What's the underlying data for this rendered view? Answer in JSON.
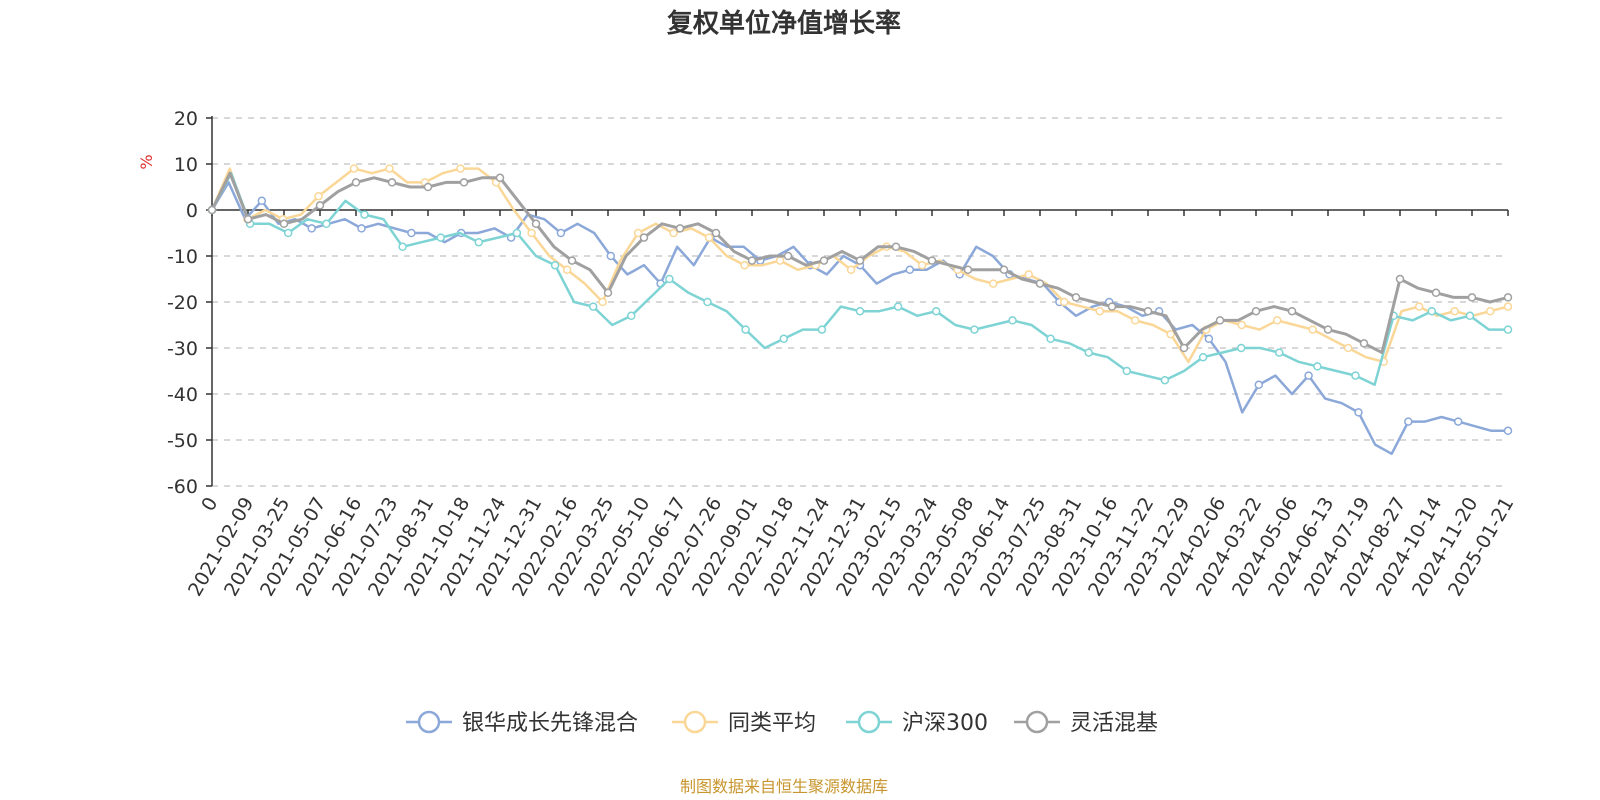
{
  "chart_data": {
    "type": "line",
    "title": "复权单位净值增长率",
    "ylabel": "%",
    "ylim": [
      -60,
      20
    ],
    "yticks": [
      20,
      10,
      0,
      -10,
      -20,
      -30,
      -40,
      -50,
      -60
    ],
    "x_start_label": "0",
    "x_tick_labels": [
      "2021-02-09",
      "2021-03-25",
      "2021-05-07",
      "2021-06-16",
      "2021-07-23",
      "2021-08-31",
      "2021-10-18",
      "2021-11-24",
      "2021-12-31",
      "2022-02-16",
      "2022-03-25",
      "2022-05-10",
      "2022-06-17",
      "2022-07-26",
      "2022-09-01",
      "2022-10-18",
      "2022-11-24",
      "2022-12-31",
      "2023-02-15",
      "2023-03-24",
      "2023-05-08",
      "2023-06-14",
      "2023-07-25",
      "2023-08-31",
      "2023-10-16",
      "2023-11-22",
      "2023-12-29",
      "2024-02-06",
      "2024-03-22",
      "2024-05-06",
      "2024-06-13",
      "2024-07-19",
      "2024-08-27",
      "2024-10-14",
      "2024-11-20",
      "2025-01-21"
    ],
    "grid": true,
    "legend_position": "bottom",
    "series": [
      {
        "name": "银华成长先锋混合",
        "color": "#8ba8d9",
        "values": [
          0,
          6,
          -2,
          2,
          -3,
          -2,
          -4,
          -3,
          -2,
          -4,
          -3,
          -4,
          -5,
          -5,
          -7,
          -5,
          -5,
          -4,
          -6,
          -1,
          -2,
          -5,
          -3,
          -5,
          -10,
          -14,
          -12,
          -16,
          -8,
          -12,
          -6,
          -8,
          -8,
          -11,
          -10,
          -8,
          -12,
          -14,
          -10,
          -12,
          -16,
          -14,
          -13,
          -13,
          -11,
          -14,
          -8,
          -10,
          -14,
          -15,
          -16,
          -20,
          -23,
          -21,
          -20,
          -21,
          -23,
          -22,
          -26,
          -25,
          -28,
          -33,
          -44,
          -38,
          -36,
          -40,
          -36,
          -41,
          -42,
          -44,
          -51,
          -53,
          -46,
          -46,
          -45,
          -46,
          -47,
          -48,
          -48
        ]
      },
      {
        "name": "同类平均",
        "color": "#fad797",
        "values": [
          0,
          9,
          -2,
          0,
          -2,
          -1,
          3,
          6,
          9,
          8,
          9,
          6,
          6,
          8,
          9,
          9,
          6,
          0,
          -5,
          -10,
          -13,
          -16,
          -20,
          -11,
          -5,
          -3,
          -5,
          -4,
          -6,
          -10,
          -12,
          -12,
          -11,
          -13,
          -12,
          -10,
          -13,
          -10,
          -8,
          -9,
          -12,
          -11,
          -13,
          -15,
          -16,
          -15,
          -14,
          -16,
          -20,
          -21,
          -22,
          -22,
          -24,
          -25,
          -27,
          -33,
          -26,
          -24,
          -25,
          -26,
          -24,
          -25,
          -26,
          -28,
          -30,
          -32,
          -33,
          -22,
          -21,
          -23,
          -22,
          -23,
          -22,
          -21
        ]
      },
      {
        "name": "沪深300",
        "color": "#7ed3d4",
        "values": [
          0,
          8,
          -3,
          -3,
          -5,
          -2,
          -3,
          2,
          -1,
          -2,
          -8,
          -7,
          -6,
          -5,
          -7,
          -6,
          -5,
          -10,
          -12,
          -20,
          -21,
          -25,
          -23,
          -19,
          -15,
          -18,
          -20,
          -22,
          -26,
          -30,
          -28,
          -26,
          -26,
          -21,
          -22,
          -22,
          -21,
          -23,
          -22,
          -25,
          -26,
          -25,
          -24,
          -25,
          -28,
          -29,
          -31,
          -32,
          -35,
          -36,
          -37,
          -35,
          -32,
          -31,
          -30,
          -30,
          -31,
          -33,
          -34,
          -35,
          -36,
          -38,
          -23,
          -24,
          -22,
          -24,
          -23,
          -26,
          -26
        ]
      },
      {
        "name": "灵活混基",
        "color": "#a0a0a0",
        "values": [
          0,
          8,
          -2,
          -1,
          -3,
          -2,
          1,
          4,
          6,
          7,
          6,
          5,
          5,
          6,
          6,
          7,
          7,
          2,
          -3,
          -8,
          -11,
          -13,
          -18,
          -10,
          -6,
          -3,
          -4,
          -3,
          -5,
          -9,
          -11,
          -10,
          -10,
          -12,
          -11,
          -9,
          -11,
          -8,
          -8,
          -9,
          -11,
          -12,
          -13,
          -13,
          -13,
          -15,
          -16,
          -17,
          -19,
          -20,
          -21,
          -21,
          -22,
          -23,
          -30,
          -26,
          -24,
          -24,
          -22,
          -21,
          -22,
          -24,
          -26,
          -27,
          -29,
          -31,
          -15,
          -17,
          -18,
          -19,
          -19,
          -20,
          -19
        ]
      }
    ]
  },
  "source": "制图数据来自恒生聚源数据库"
}
